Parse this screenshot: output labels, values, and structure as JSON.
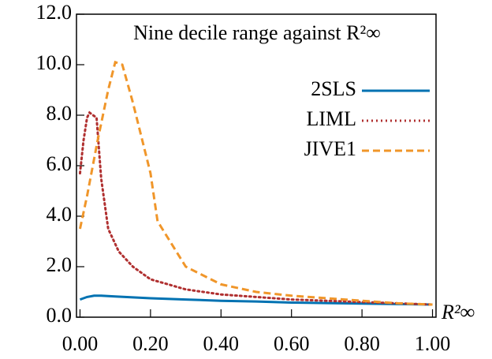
{
  "chart_data": {
    "type": "line",
    "title": "Nine decile range against R²∞",
    "x_label": "R²∞",
    "xlim": [
      -0.01,
      1.01
    ],
    "ylim": [
      0,
      12
    ],
    "xticks": [
      {
        "value": 0,
        "label": "0.00"
      },
      {
        "value": 0.2,
        "label": "0.20"
      },
      {
        "value": 0.4,
        "label": "0.40"
      },
      {
        "value": 0.6,
        "label": "0.60"
      },
      {
        "value": 0.8,
        "label": "0.80"
      },
      {
        "value": 1,
        "label": "1.00"
      }
    ],
    "yticks": [
      {
        "value": 0,
        "label": "0.0"
      },
      {
        "value": 2,
        "label": "2.0"
      },
      {
        "value": 4,
        "label": "4.0"
      },
      {
        "value": 6,
        "label": "6.0"
      },
      {
        "value": 8,
        "label": "8.0"
      },
      {
        "value": 10,
        "label": "10.0"
      },
      {
        "value": 12,
        "label": "12.0"
      }
    ],
    "legend": "upper right",
    "series": [
      {
        "name": "2SLS",
        "color": "#0072b2",
        "dash": "solid",
        "x": [
          0,
          0.02,
          0.04,
          0.06,
          0.1,
          0.2,
          0.3,
          0.4,
          0.5,
          0.6,
          0.7,
          0.8,
          0.9,
          1.0
        ],
        "values": [
          0.7,
          0.8,
          0.85,
          0.85,
          0.82,
          0.75,
          0.7,
          0.65,
          0.62,
          0.58,
          0.56,
          0.54,
          0.52,
          0.5
        ]
      },
      {
        "name": "LIML",
        "color": "#b03030",
        "dash": "dotted",
        "x": [
          0,
          0.01,
          0.02,
          0.027,
          0.047,
          0.06,
          0.08,
          0.11,
          0.15,
          0.2,
          0.3,
          0.4,
          0.5,
          0.6,
          0.8,
          1.0
        ],
        "values": [
          5.7,
          7.0,
          7.9,
          8.1,
          7.9,
          5.5,
          3.5,
          2.6,
          2.0,
          1.5,
          1.1,
          0.9,
          0.8,
          0.7,
          0.6,
          0.5
        ]
      },
      {
        "name": "JIVE1",
        "color": "#f0962a",
        "dash": "dashed",
        "x": [
          0,
          0.02,
          0.05,
          0.08,
          0.1,
          0.12,
          0.15,
          0.2,
          0.22,
          0.3,
          0.4,
          0.5,
          0.6,
          0.7,
          0.8,
          0.9,
          1.0
        ],
        "values": [
          3.5,
          4.8,
          7.0,
          9.0,
          10.1,
          10.0,
          8.5,
          5.7,
          3.8,
          2.0,
          1.3,
          1.0,
          0.85,
          0.75,
          0.65,
          0.55,
          0.5
        ]
      }
    ]
  }
}
